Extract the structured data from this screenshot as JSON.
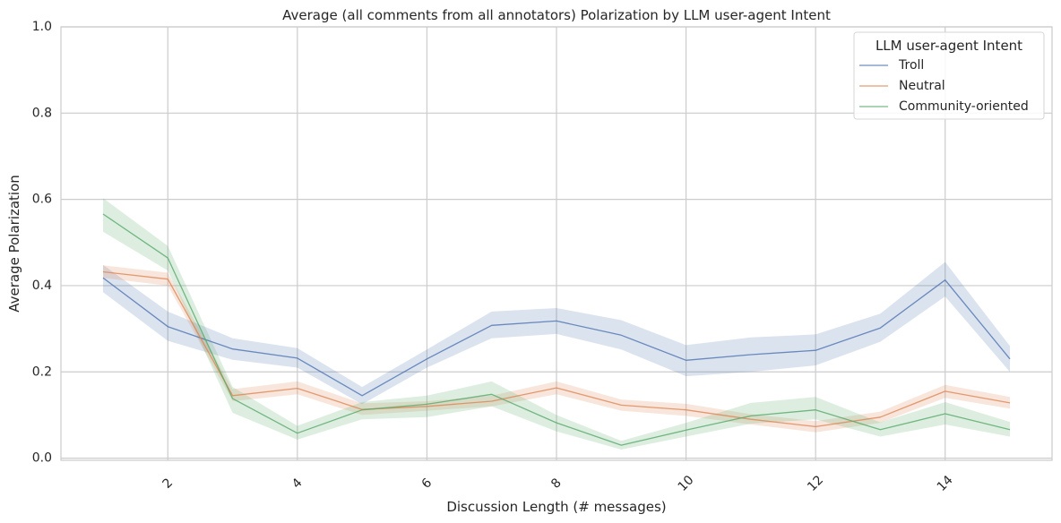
{
  "chart_data": {
    "type": "line",
    "title": "Average (all comments from all annotators) Polarization by LLM user-agent Intent",
    "xlabel": "Discussion Length (# messages)",
    "ylabel": "Average Polarization",
    "xlim": [
      0.35,
      15.65
    ],
    "ylim": [
      -0.005,
      1.0
    ],
    "xticks": [
      2,
      4,
      6,
      8,
      10,
      12,
      14
    ],
    "xtick_labels": [
      "2",
      "4",
      "6",
      "8",
      "10",
      "12",
      "14"
    ],
    "yticks": [
      0.0,
      0.2,
      0.4,
      0.6,
      0.8,
      1.0
    ],
    "ytick_labels": [
      "0.0",
      "0.2",
      "0.4",
      "0.6",
      "0.8",
      "1.0"
    ],
    "grid": true,
    "legend": {
      "title": "LLM user-agent Intent",
      "position": "top-right"
    },
    "x": [
      1,
      2,
      3,
      4,
      5,
      6,
      7,
      8,
      9,
      10,
      11,
      12,
      13,
      14,
      15
    ],
    "series": [
      {
        "name": "Troll",
        "color": "#4c72b0",
        "values": [
          0.418,
          0.305,
          0.253,
          0.232,
          0.145,
          0.23,
          0.308,
          0.318,
          0.285,
          0.227,
          0.24,
          0.25,
          0.302,
          0.413,
          0.23
        ],
        "ci_lower": [
          0.385,
          0.272,
          0.228,
          0.21,
          0.125,
          0.21,
          0.278,
          0.288,
          0.252,
          0.19,
          0.2,
          0.215,
          0.27,
          0.375,
          0.2
        ],
        "ci_upper": [
          0.448,
          0.34,
          0.278,
          0.255,
          0.165,
          0.252,
          0.34,
          0.348,
          0.32,
          0.262,
          0.28,
          0.287,
          0.335,
          0.455,
          0.26
        ]
      },
      {
        "name": "Neutral",
        "color": "#dd8452",
        "values": [
          0.432,
          0.415,
          0.145,
          0.162,
          0.113,
          0.12,
          0.132,
          0.163,
          0.123,
          0.112,
          0.09,
          0.073,
          0.095,
          0.155,
          0.128
        ],
        "ci_lower": [
          0.418,
          0.4,
          0.132,
          0.148,
          0.1,
          0.11,
          0.12,
          0.148,
          0.11,
          0.098,
          0.078,
          0.06,
          0.082,
          0.14,
          0.115
        ],
        "ci_upper": [
          0.447,
          0.43,
          0.16,
          0.178,
          0.127,
          0.132,
          0.145,
          0.178,
          0.136,
          0.126,
          0.102,
          0.086,
          0.108,
          0.17,
          0.142
        ]
      },
      {
        "name": "Community-oriented",
        "color": "#55a868",
        "values": [
          0.566,
          0.464,
          0.138,
          0.058,
          0.112,
          0.125,
          0.148,
          0.082,
          0.03,
          0.065,
          0.098,
          0.112,
          0.066,
          0.103,
          0.066
        ],
        "ci_lower": [
          0.525,
          0.435,
          0.105,
          0.043,
          0.09,
          0.095,
          0.12,
          0.062,
          0.02,
          0.05,
          0.08,
          0.09,
          0.05,
          0.078,
          0.05
        ],
        "ci_upper": [
          0.603,
          0.492,
          0.165,
          0.075,
          0.13,
          0.145,
          0.178,
          0.1,
          0.04,
          0.082,
          0.128,
          0.142,
          0.083,
          0.13,
          0.084
        ]
      }
    ]
  }
}
